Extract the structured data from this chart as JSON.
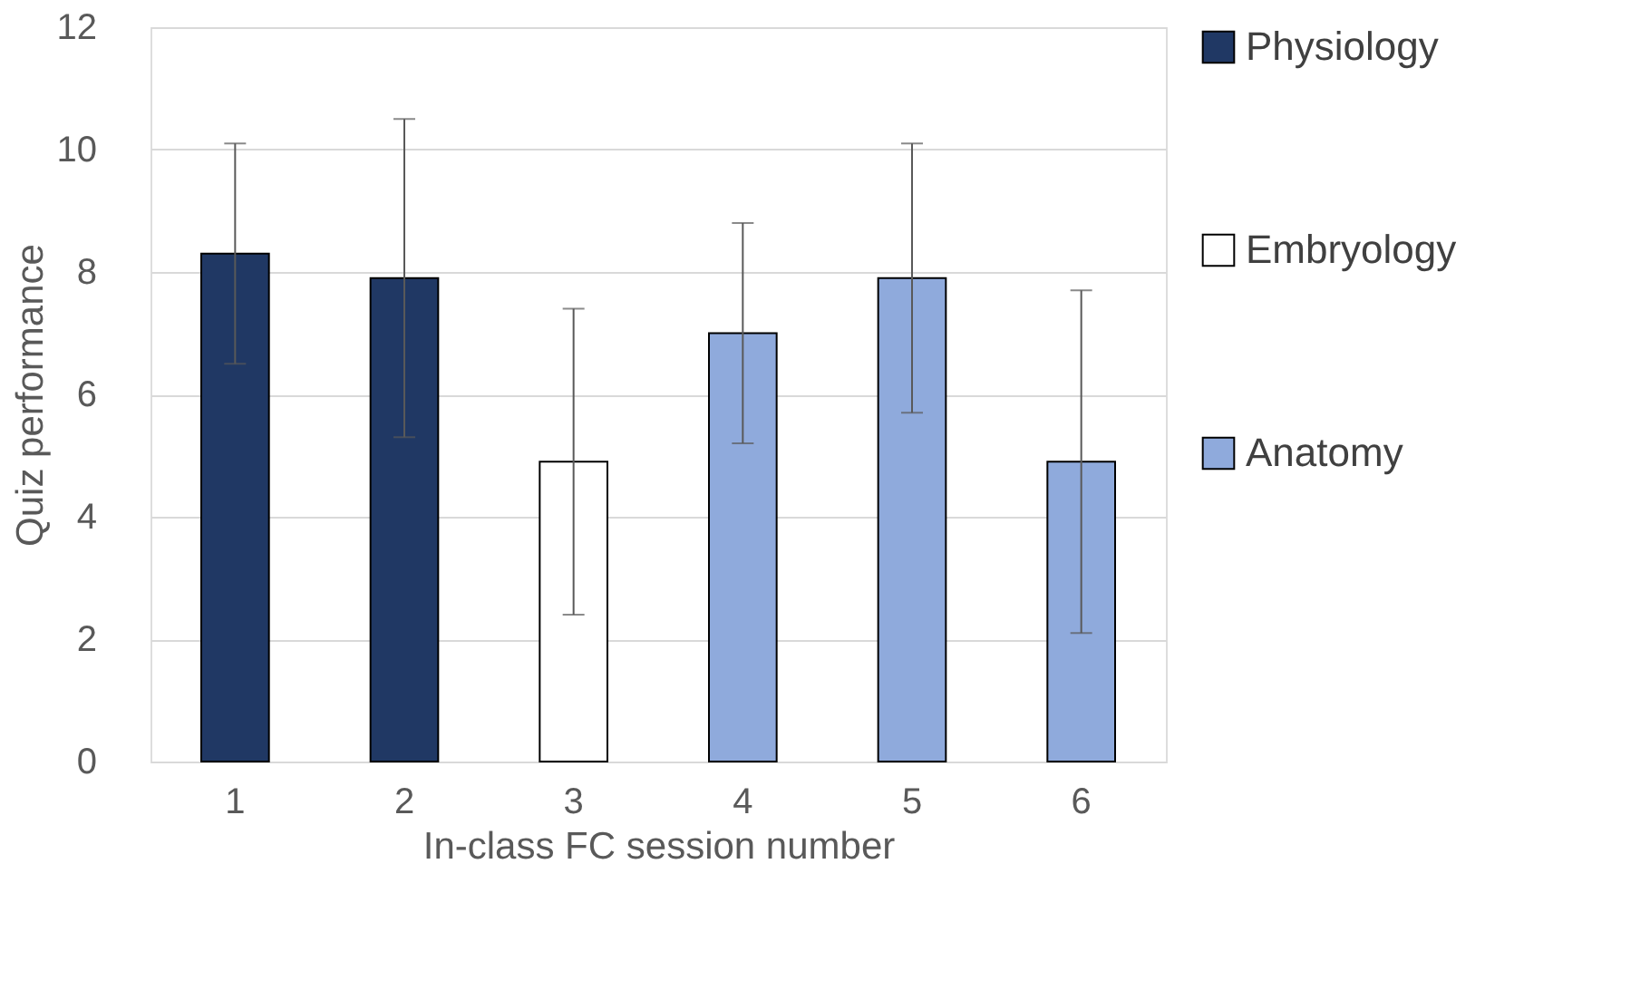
{
  "chart_data": {
    "type": "bar",
    "xlabel": "In-class FC session number",
    "ylabel": "Quiz performance",
    "categories": [
      "1",
      "2",
      "3",
      "4",
      "5",
      "6"
    ],
    "series": [
      {
        "name": "Physiology",
        "color": "#203864",
        "values": [
          8.3,
          7.9,
          null,
          null,
          null,
          null
        ],
        "errors": [
          1.8,
          2.6,
          null,
          null,
          null,
          null
        ]
      },
      {
        "name": "Embryology",
        "color": "#ffffff",
        "values": [
          null,
          null,
          4.9,
          null,
          null,
          null
        ],
        "errors": [
          null,
          null,
          2.5,
          null,
          null,
          null
        ]
      },
      {
        "name": "Anatomy",
        "color": "#8faadc",
        "values": [
          null,
          null,
          null,
          7.0,
          7.9,
          4.9
        ],
        "errors": [
          null,
          null,
          null,
          1.8,
          2.2,
          2.8
        ]
      }
    ],
    "ylim": [
      0,
      12
    ],
    "yticks": [
      0,
      2,
      4,
      6,
      8,
      10,
      12
    ],
    "grid": "y",
    "legend": "right"
  }
}
